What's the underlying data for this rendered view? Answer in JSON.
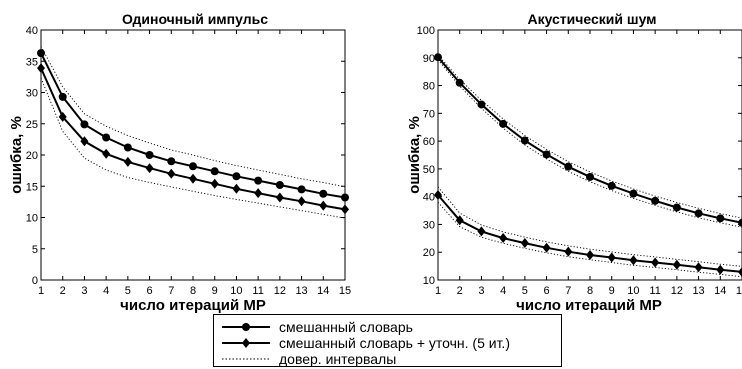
{
  "chart_data": [
    {
      "type": "line",
      "title": "Одиночный импульс",
      "xlabel": "число итераций MP",
      "ylabel": "ошибка, %",
      "x": [
        1,
        2,
        3,
        4,
        5,
        6,
        7,
        8,
        9,
        10,
        11,
        12,
        13,
        14,
        15
      ],
      "xlim": [
        1,
        15
      ],
      "ylim": [
        0,
        40
      ],
      "yticks": [
        0,
        5,
        10,
        15,
        20,
        25,
        30,
        35,
        40
      ],
      "grid": false,
      "series": [
        {
          "name": "смешанный словарь",
          "marker": "circle",
          "style": "solid",
          "values": [
            36.3,
            29.3,
            24.9,
            22.8,
            21.2,
            20.0,
            19.0,
            18.2,
            17.4,
            16.6,
            15.9,
            15.2,
            14.5,
            13.8,
            13.2
          ]
        },
        {
          "name": "смешанный словарь + уточн. (5 ит.)",
          "marker": "diamond",
          "style": "solid",
          "values": [
            33.9,
            26.1,
            22.2,
            20.2,
            18.9,
            17.9,
            17.0,
            16.2,
            15.4,
            14.6,
            13.9,
            13.2,
            12.6,
            11.9,
            11.3
          ]
        },
        {
          "name": "довер. интервалы",
          "marker": "none",
          "style": "dotted",
          "band_of": 0,
          "values": [
            37.4,
            30.9,
            26.6,
            24.6,
            23.1,
            21.9,
            20.8,
            20.0,
            19.1,
            18.3,
            17.6,
            16.9,
            16.2,
            15.6,
            14.9
          ]
        },
        {
          "name": "довер. интервалы",
          "marker": "none",
          "style": "dotted",
          "band_of": 1,
          "values": [
            32.3,
            23.8,
            19.5,
            17.6,
            16.4,
            15.6,
            14.9,
            14.2,
            13.5,
            12.9,
            12.3,
            11.7,
            11.1,
            10.5,
            9.9
          ]
        }
      ]
    },
    {
      "type": "line",
      "title": "Акустический шум",
      "xlabel": "число итераций MP",
      "ylabel": "ошибка, %",
      "x": [
        1,
        2,
        3,
        4,
        5,
        6,
        7,
        8,
        9,
        10,
        11,
        12,
        13,
        14,
        15
      ],
      "xlim": [
        1,
        15
      ],
      "ylim": [
        10,
        100
      ],
      "yticks": [
        10,
        20,
        30,
        40,
        50,
        60,
        70,
        80,
        90,
        100
      ],
      "grid": false,
      "series": [
        {
          "name": "смешанный словарь",
          "marker": "circle",
          "style": "solid",
          "values": [
            90.2,
            81.0,
            73.2,
            66.2,
            60.2,
            55.2,
            50.8,
            47.1,
            43.9,
            41.1,
            38.5,
            36.1,
            34.0,
            32.2,
            30.6
          ]
        },
        {
          "name": "смешанный словарь + уточн. (5 ит.)",
          "marker": "diamond",
          "style": "solid",
          "values": [
            40.6,
            31.5,
            27.5,
            25.1,
            23.3,
            21.6,
            20.2,
            19.0,
            18.1,
            17.1,
            16.3,
            15.5,
            14.6,
            13.7,
            12.9
          ]
        },
        {
          "name": "довер. интервалы",
          "marker": "none",
          "style": "dotted",
          "band_of": 0,
          "values": [
            91.0,
            82.2,
            74.7,
            68.0,
            62.0,
            57.0,
            52.6,
            48.9,
            45.6,
            42.8,
            40.2,
            37.9,
            35.8,
            33.9,
            32.3
          ]
        },
        {
          "name": "довер. интервалы",
          "marker": "none",
          "style": "dotted",
          "band_of": 0,
          "values": [
            89.3,
            79.8,
            71.8,
            64.7,
            58.6,
            53.6,
            49.1,
            45.4,
            42.2,
            39.4,
            36.9,
            34.5,
            32.4,
            30.6,
            29.0
          ]
        },
        {
          "name": "довер. интервалы",
          "marker": "none",
          "style": "dotted",
          "band_of": 1,
          "values": [
            43.5,
            34.1,
            29.8,
            27.3,
            25.4,
            23.7,
            22.3,
            21.1,
            20.1,
            19.1,
            18.3,
            17.4,
            16.6,
            15.7,
            14.9
          ]
        },
        {
          "name": "довер. интервалы",
          "marker": "none",
          "style": "dotted",
          "band_of": 1,
          "values": [
            38.0,
            29.2,
            25.4,
            23.2,
            21.4,
            19.8,
            18.4,
            17.3,
            16.3,
            15.3,
            14.5,
            13.7,
            12.8,
            12.0,
            11.2
          ]
        }
      ]
    }
  ],
  "legend": {
    "placement": "bottom-center",
    "items": [
      {
        "label": "смешанный словарь",
        "marker": "circle",
        "style": "solid"
      },
      {
        "label": "смешанный словарь + уточн. (5 ит.)",
        "marker": "diamond",
        "style": "solid"
      },
      {
        "label": "довер. интервалы",
        "marker": "none",
        "style": "dotted"
      }
    ]
  }
}
